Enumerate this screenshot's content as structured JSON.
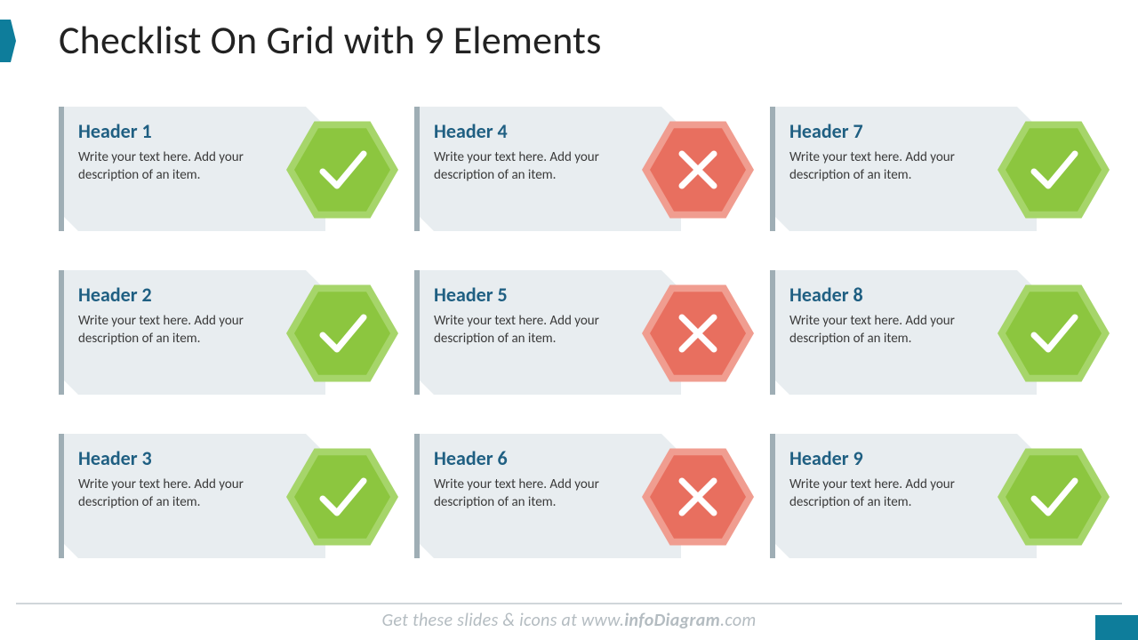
{
  "title": "Checklist On Grid with 9 Elements",
  "colors": {
    "accent": "#0e7d9b",
    "headerText": "#1f5f82",
    "bodyText": "#3a3a3a",
    "cardBg": "#e8edf0",
    "cardBorder": "#9faeb5",
    "checkHex": "#8cc63f",
    "checkHexLight": "#a6d56a",
    "crossHex": "#e86f5f",
    "crossHexLight": "#f09d90",
    "iconStroke": "#ffffff",
    "footerText": "#b4bcc1",
    "footerLine": "#d0d6da"
  },
  "typography": {
    "titleSize": 44,
    "headerSize": 22,
    "bodySize": 15,
    "footerSize": 20
  },
  "layout": {
    "columns": 3,
    "rows": 3,
    "cardWidth": 300,
    "cardHeight": 140,
    "hexSize": 126
  },
  "items": [
    {
      "header": "Header 1",
      "desc": "Write your text here. Add your description of an item.",
      "status": "check"
    },
    {
      "header": "Header 4",
      "desc": "Write your text here. Add your description of an item.",
      "status": "cross"
    },
    {
      "header": "Header 7",
      "desc": "Write your text here. Add your description of an item.",
      "status": "check"
    },
    {
      "header": "Header 2",
      "desc": "Write your text here. Add your description of an item.",
      "status": "check"
    },
    {
      "header": "Header 5",
      "desc": "Write your text here. Add your description of an item.",
      "status": "cross"
    },
    {
      "header": "Header 8",
      "desc": "Write your text here. Add your description of an item.",
      "status": "check"
    },
    {
      "header": "Header 3",
      "desc": "Write your text here. Add your description of an item.",
      "status": "check"
    },
    {
      "header": "Header 6",
      "desc": "Write your text here. Add your description of an item.",
      "status": "cross"
    },
    {
      "header": "Header 9",
      "desc": "Write your text here. Add your description of an item.",
      "status": "check"
    }
  ],
  "footer": {
    "prefix": "Get these slides & icons at www.",
    "bold": "infoDiagram",
    "suffix": ".com"
  }
}
